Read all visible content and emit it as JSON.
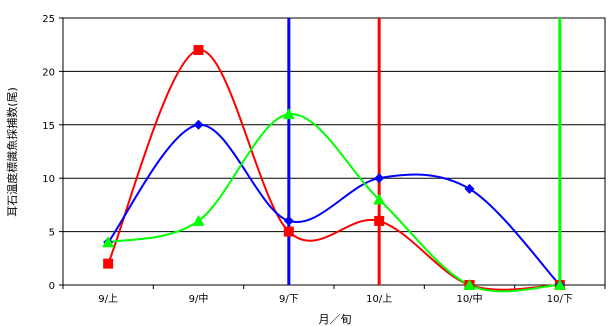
{
  "chart_data": {
    "type": "line",
    "title": "",
    "xlabel": "月／旬",
    "ylabel": "耳石温度標識魚採捕数(尾)",
    "categories": [
      "9/上",
      "9/中",
      "9/下",
      "10/上",
      "10/中",
      "10/下"
    ],
    "ylim": [
      0,
      25
    ],
    "yticks": [
      0,
      5,
      10,
      15,
      20,
      25
    ],
    "grid": true,
    "legend": "none",
    "series": [
      {
        "color": "#ff0000",
        "marker": "square",
        "values": [
          2,
          22,
          5,
          6,
          0,
          0
        ]
      },
      {
        "color": "#0000ff",
        "marker": "diamond",
        "values": [
          4,
          15,
          6,
          10,
          9,
          0
        ]
      },
      {
        "color": "#00ff00",
        "marker": "triangle",
        "values": [
          4,
          6,
          16,
          8,
          0,
          0
        ]
      }
    ],
    "vertical_markers": [
      {
        "color": "#0000ff",
        "x": 2
      },
      {
        "color": "#ff0000",
        "x": 3
      },
      {
        "color": "#00ff00",
        "x": 5
      }
    ]
  }
}
